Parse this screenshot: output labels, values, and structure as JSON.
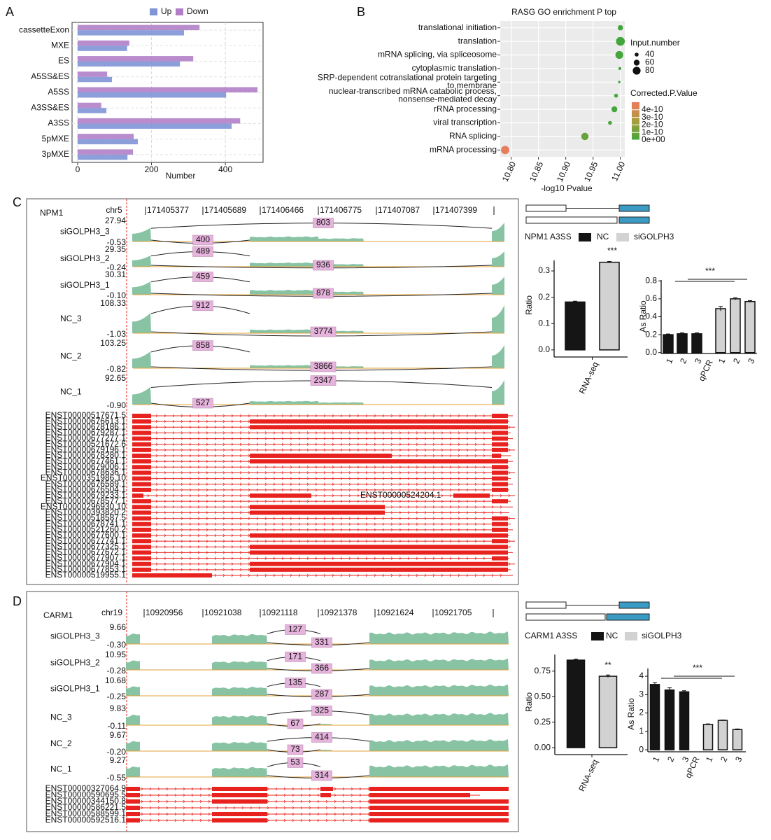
{
  "panel_labels": [
    "A",
    "B",
    "C",
    "D"
  ],
  "chart_data": [
    {
      "type": "hbar",
      "xlabel": "Number",
      "categories": [
        "cassetteExon",
        "MXE",
        "ES",
        "A5SS&ES",
        "A5SS",
        "A3SS&ES",
        "A3SS",
        "5pMXE",
        "3pMXE"
      ],
      "series": [
        {
          "name": "Up",
          "color": "#7f95d6",
          "values": [
            288,
            134,
            277,
            93,
            402,
            78,
            417,
            163,
            135
          ]
        },
        {
          "name": "Down",
          "color": "#b07fc8",
          "values": [
            330,
            140,
            313,
            80,
            487,
            64,
            440,
            152,
            150
          ]
        }
      ],
      "xlim": [
        -15,
        502
      ],
      "xticks": [
        0,
        200,
        400
      ],
      "grid": true
    },
    {
      "type": "dot",
      "title": "RASG GO enrichment P top",
      "xlabel": "-log10 Pvalue",
      "categories": [
        "translational initiation",
        "translation",
        "mRNA splicing, via spliceosome",
        "cytoplasmic translation",
        "SRP-dependent cotranslational protein targeting\nto membrane",
        "nuclear-transcribed mRNA catabolic process,\nnonsense-mediated decay",
        "rRNA processing",
        "viral transcription",
        "RNA splicing",
        "mRNA processing"
      ],
      "values": [
        11.0,
        11.0,
        10.998,
        10.999,
        10.998,
        10.992,
        10.989,
        10.981,
        10.935,
        10.789
      ],
      "sizes": [
        55,
        90,
        80,
        30,
        25,
        40,
        60,
        40,
        75,
        85
      ],
      "pvalues": [
        1e-12,
        1e-12,
        2e-12,
        2e-12,
        3e-12,
        5e-12,
        8e-12,
        1.5e-11,
        9e-11,
        4.8e-10
      ],
      "xlim": [
        10.78,
        11.008
      ],
      "xticks": [
        {
          "value": 10.8,
          "label": "10.80"
        },
        10.85,
        {
          "value": 10.9,
          "label": "10.90"
        },
        10.95,
        {
          "value": 11.0,
          "label": "11.00"
        }
      ],
      "size_legend_title": "Input.number",
      "size_ticks": [
        40,
        60,
        80
      ],
      "color_legend_title": "Corrected.P.Value",
      "color_ticks": [
        {
          "value": 4e-10,
          "label": "4e-10"
        },
        {
          "value": 3e-10,
          "label": "3e-10"
        },
        {
          "value": 2e-10,
          "label": "2e-10"
        },
        {
          "value": 1e-10,
          "label": "1e-10"
        },
        {
          "value": 0,
          "label": "0e+00"
        }
      ],
      "clim": [
        0,
        5e-10
      ],
      "colormap": [
        "#43a63c",
        "#a69d3c",
        "#ee7a5e"
      ],
      "grid": true
    },
    {
      "type": "sashimi",
      "gene": "NPM1",
      "chrom": "chr5",
      "coordinates": [
        171405377,
        171405689,
        171406466,
        171406775,
        171407087,
        171407399
      ],
      "tracks": [
        {
          "name": "siGOLPH3_3",
          "ymax": 27.94,
          "ymin": -0.53,
          "junctions": [
            400,
            803
          ]
        },
        {
          "name": "siGOLPH3_2",
          "ymax": 29.35,
          "ymin": -0.24,
          "junctions": [
            489,
            936
          ]
        },
        {
          "name": "siGOLPH3_1",
          "ymax": 30.31,
          "ymin": {
            "value": -0.1,
            "label": "-0.10"
          },
          "junctions": [
            459,
            878
          ]
        },
        {
          "name": "NC_3",
          "ymax": 108.33,
          "ymin": -1.03,
          "junctions": [
            912,
            3774
          ]
        },
        {
          "name": "NC_2",
          "ymax": 103.25,
          "ymin": -0.82,
          "junctions": [
            858,
            3866
          ]
        },
        {
          "name": "NC_1",
          "ymax": 92.65,
          "ymin": {
            "value": -0.9,
            "label": "-0.90"
          },
          "junctions": [
            527,
            2347
          ]
        }
      ],
      "transcripts": [
        "ENST00000517671.5",
        "ENST00000676613.1",
        "ENST00000678186.1",
        "ENST00000679287.1",
        "ENST00000677277.1",
        "ENST00000521672.6",
        "ENST00000679196.1",
        "ENST00000678280.1",
        "ENST00000677461.1",
        "ENST00000679006.1",
        "ENST00000678636.1",
        "ENST00000351986.10",
        "ENST00000676589.1",
        "ENST00000676504.1",
        "ENST00000679233.1",
        "ENST00000678577.1",
        "ENST00000296930.10",
        "ENST00000393820.2",
        "ENST00000518587.5",
        "ENST00000678741.1",
        "ENST00000521260.2",
        "ENST00000677600.1",
        "ENST00000677741.1",
        "ENST00000677325.1",
        "ENST00000677672.1",
        "ENST00000677907.1",
        "ENST00000677904.1",
        "ENST00000677853.1",
        "ENST00000519955.1"
      ],
      "inline_transcript": "ENST00000524204.1"
    },
    {
      "type": "vbar",
      "title": "NPM1 A3SS",
      "ylabel": "Ratio",
      "categories": [
        "RNA-seq"
      ],
      "series": [
        {
          "name": "NC",
          "color": "#151515",
          "values": [
            0.182
          ],
          "errors": [
            0.003
          ]
        },
        {
          "name": "siGOLPH3",
          "color": "#d2d2d2",
          "values": [
            0.333
          ],
          "errors": [
            0.003
          ]
        }
      ],
      "ylim": [
        -0.027,
        0.34
      ],
      "yticks": [
        {
          "value": 0,
          "label": "0.0"
        },
        0.1,
        0.2,
        0.3
      ],
      "annotation": "***"
    },
    {
      "type": "vbar",
      "ylabel": "As Ratio",
      "categories": [
        "1",
        "2",
        "3",
        "1",
        "2",
        "3"
      ],
      "group_label": "qPCR",
      "values": [
        0.2,
        0.21,
        0.21,
        0.49,
        0.6,
        0.57
      ],
      "errors": [
        0.008,
        0.01,
        0.01,
        0.025,
        0.012,
        0.01
      ],
      "bar_colors": [
        "#151515",
        "#151515",
        "#151515",
        "#d2d2d2",
        "#d2d2d2",
        "#d2d2d2"
      ],
      "ylim": [
        -0.01,
        0.81
      ],
      "yticks": [
        {
          "value": 0,
          "label": "0.0"
        },
        0.2,
        0.4,
        0.6,
        0.8
      ],
      "annotation": "***"
    },
    {
      "type": "sashimi",
      "gene": "CARM1",
      "chrom": "chr19",
      "coordinates": [
        10920956,
        10921038,
        10921118,
        10921378,
        10921624,
        10921705
      ],
      "tracks": [
        {
          "name": "siGOLPH3_3",
          "ymax": 9.66,
          "ymin": {
            "value": -0.3,
            "label": "-0.30"
          },
          "junctions": [
            127,
            331
          ]
        },
        {
          "name": "siGOLPH3_2",
          "ymax": 10.95,
          "ymin": -0.28,
          "junctions": [
            171,
            366
          ]
        },
        {
          "name": "siGOLPH3_1",
          "ymax": 10.68,
          "ymin": -0.25,
          "junctions": [
            135,
            287
          ]
        },
        {
          "name": "NC_3",
          "ymax": 9.83,
          "ymin": -0.11,
          "junctions": [
            67,
            325
          ]
        },
        {
          "name": "NC_2",
          "ymax": 9.67,
          "ymin": {
            "value": -0.2,
            "label": "-0.20"
          },
          "junctions": [
            73,
            414
          ]
        },
        {
          "name": "NC_1",
          "ymax": 9.27,
          "ymin": -0.55,
          "junctions": [
            53,
            314
          ]
        }
      ],
      "transcripts": [
        "ENST00000327064.9",
        "ENST00000590695.5",
        "ENST00000344150.8",
        "ENST00000586221.5",
        "ENST00000588599.1",
        "ENST00000592516.1"
      ]
    },
    {
      "type": "vbar",
      "title": "CARM1 A3SS",
      "ylabel": "Ratio",
      "categories": [
        "RNA-seq"
      ],
      "series": [
        {
          "name": "NC",
          "color": "#151515",
          "values": [
            0.858
          ],
          "errors": [
            0.01
          ]
        },
        {
          "name": "siGOLPH3",
          "color": "#d2d2d2",
          "values": [
            0.7
          ],
          "errors": [
            0.012
          ]
        }
      ],
      "ylim": [
        -0.068,
        0.913
      ],
      "yticks": [
        {
          "value": 0,
          "label": "0.00"
        },
        0.25,
        {
          "value": 0.5,
          "label": "0.50"
        },
        0.75
      ],
      "annotation": "**"
    },
    {
      "type": "vbar",
      "ylabel": "As Ratio",
      "categories": [
        "1",
        "2",
        "3",
        "1",
        "2",
        "3"
      ],
      "group_label": "qPCR",
      "values": [
        3.55,
        3.25,
        3.15,
        1.38,
        1.6,
        1.1
      ],
      "errors": [
        0.1,
        0.12,
        0.06,
        0.03,
        0.02,
        0.03
      ],
      "bar_colors": [
        "#151515",
        "#151515",
        "#151515",
        "#d2d2d2",
        "#d2d2d2",
        "#d2d2d2"
      ],
      "ylim": [
        -0.11,
        4.42
      ],
      "yticks": [
        0,
        1,
        2,
        3,
        4
      ],
      "annotation": "***"
    }
  ]
}
